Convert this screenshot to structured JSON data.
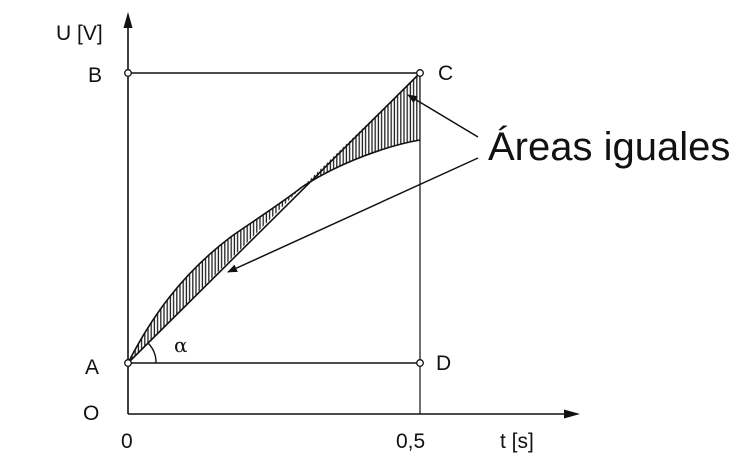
{
  "diagram": {
    "y_axis_label": "U [V]",
    "x_axis_label": "t [s]",
    "x_ticks": [
      "0",
      "0,5"
    ],
    "points": {
      "A": "A",
      "B": "B",
      "C": "C",
      "D": "D",
      "O": "O"
    },
    "angle_label": "α",
    "annotation": "Áreas iguales",
    "colors": {
      "line": "#111111",
      "hatch": "#222222",
      "background": "#ffffff"
    }
  }
}
